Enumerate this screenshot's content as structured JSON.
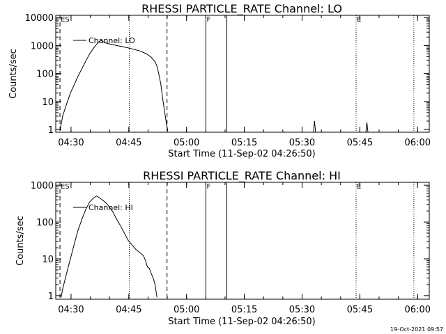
{
  "footer": {
    "timestamp": "19-Oct-2021 09:57"
  },
  "chart_data": [
    {
      "type": "line",
      "title": "RHESSI PARTICLE_RATE Channel: LO",
      "xlabel": "Start Time (11-Sep-02 04:26:50)",
      "ylabel": "Counts/sec",
      "yscale": "log",
      "ylim": [
        0.8,
        12000
      ],
      "xlim_minutes": [
        -0.8,
        96.2
      ],
      "x_ticks": [
        {
          "m": 3.17,
          "label": "04:30"
        },
        {
          "m": 18.17,
          "label": "04:45"
        },
        {
          "m": 33.17,
          "label": "05:00"
        },
        {
          "m": 48.17,
          "label": "05:15"
        },
        {
          "m": 63.17,
          "label": "05:30"
        },
        {
          "m": 78.17,
          "label": "05:45"
        },
        {
          "m": 93.17,
          "label": "06:00"
        }
      ],
      "y_ticks": [
        {
          "v": 1,
          "label": "1"
        },
        {
          "v": 10,
          "label": "10"
        },
        {
          "v": 100,
          "label": "100"
        },
        {
          "v": 1000,
          "label": "1000"
        },
        {
          "v": 10000,
          "label": "10000"
        }
      ],
      "legend": {
        "label": "Channel: LO",
        "position": "top-left"
      },
      "vlines": [
        {
          "m": 0.3,
          "style": "dashed"
        },
        {
          "m": 18.3,
          "style": "dotted"
        },
        {
          "m": 28.1,
          "style": "dashed"
        },
        {
          "m": 38.2,
          "style": "solid"
        },
        {
          "m": 43.6,
          "style": "solid"
        },
        {
          "m": 77.2,
          "style": "dotted"
        },
        {
          "m": 92.2,
          "style": "dotted"
        }
      ],
      "markers": [
        {
          "m": 0.3,
          "label": "ES"
        },
        {
          "m": 38.2,
          "label": "F"
        },
        {
          "m": 77.2,
          "label": "E"
        }
      ],
      "series": [
        {
          "name": "Channel: LO",
          "points": [
            [
              0.3,
              0.9
            ],
            [
              0.6,
              1.5
            ],
            [
              1,
              3
            ],
            [
              2,
              8
            ],
            [
              3,
              20
            ],
            [
              4,
              40
            ],
            [
              5,
              80
            ],
            [
              6,
              150
            ],
            [
              7,
              280
            ],
            [
              8,
              500
            ],
            [
              9,
              800
            ],
            [
              9.8,
              1100
            ],
            [
              10.5,
              1400
            ],
            [
              11,
              1520
            ],
            [
              11.5,
              1380
            ],
            [
              12,
              1250
            ],
            [
              13,
              1150
            ],
            [
              14,
              1080
            ],
            [
              15,
              1000
            ],
            [
              16,
              940
            ],
            [
              17,
              880
            ],
            [
              18,
              820
            ],
            [
              19,
              760
            ],
            [
              20,
              700
            ],
            [
              21,
              640
            ],
            [
              22,
              560
            ],
            [
              23,
              480
            ],
            [
              24,
              380
            ],
            [
              25,
              260
            ],
            [
              25.5,
              180
            ],
            [
              26,
              90
            ],
            [
              26.5,
              40
            ],
            [
              27,
              12
            ],
            [
              27.5,
              4
            ],
            [
              28,
              1.5
            ],
            [
              28.3,
              0.9
            ]
          ]
        }
      ],
      "spikes": [
        {
          "m": 66.4,
          "value": 2
        },
        {
          "m": 80.0,
          "value": 1.8
        }
      ]
    },
    {
      "type": "line",
      "title": "RHESSI PARTICLE_RATE Channel: HI",
      "xlabel": "Start Time (11-Sep-02 04:26:50)",
      "ylabel": "Counts/sec",
      "yscale": "log",
      "ylim": [
        0.8,
        1200
      ],
      "xlim_minutes": [
        -0.8,
        96.2
      ],
      "x_ticks": [
        {
          "m": 3.17,
          "label": "04:30"
        },
        {
          "m": 18.17,
          "label": "04:45"
        },
        {
          "m": 33.17,
          "label": "05:00"
        },
        {
          "m": 48.17,
          "label": "05:15"
        },
        {
          "m": 63.17,
          "label": "05:30"
        },
        {
          "m": 78.17,
          "label": "05:45"
        },
        {
          "m": 93.17,
          "label": "06:00"
        }
      ],
      "y_ticks": [
        {
          "v": 1,
          "label": "1"
        },
        {
          "v": 10,
          "label": "10"
        },
        {
          "v": 100,
          "label": "100"
        },
        {
          "v": 1000,
          "label": "1000"
        }
      ],
      "legend": {
        "label": "Channel: HI",
        "position": "top-left"
      },
      "vlines": [
        {
          "m": 0.3,
          "style": "dashed"
        },
        {
          "m": 18.3,
          "style": "dotted"
        },
        {
          "m": 28.1,
          "style": "dashed"
        },
        {
          "m": 38.2,
          "style": "solid"
        },
        {
          "m": 43.6,
          "style": "solid"
        },
        {
          "m": 77.2,
          "style": "dotted"
        },
        {
          "m": 92.2,
          "style": "dotted"
        }
      ],
      "markers": [
        {
          "m": 0.3,
          "label": "ES"
        },
        {
          "m": 38.2,
          "label": "F"
        },
        {
          "m": 77.2,
          "label": "E"
        }
      ],
      "series": [
        {
          "name": "Channel: HI",
          "points": [
            [
              0.6,
              0.9
            ],
            [
              1,
              1.5
            ],
            [
              2,
              4
            ],
            [
              3,
              10
            ],
            [
              4,
              25
            ],
            [
              5,
              60
            ],
            [
              6,
              120
            ],
            [
              7,
              220
            ],
            [
              8,
              350
            ],
            [
              9,
              450
            ],
            [
              9.8,
              510
            ],
            [
              10.5,
              460
            ],
            [
              11,
              420
            ],
            [
              12,
              350
            ],
            [
              13,
              270
            ],
            [
              14,
              190
            ],
            [
              15,
              120
            ],
            [
              16,
              80
            ],
            [
              17,
              50
            ],
            [
              18,
              32
            ],
            [
              19,
              24
            ],
            [
              20,
              18
            ],
            [
              21,
              15
            ],
            [
              22,
              12
            ],
            [
              22.5,
              9
            ],
            [
              23,
              6
            ],
            [
              23.5,
              5.5
            ],
            [
              24,
              4
            ],
            [
              24.5,
              3
            ],
            [
              25,
              2
            ],
            [
              25.3,
              1.2
            ],
            [
              25.5,
              0.9
            ]
          ]
        }
      ],
      "spikes": []
    }
  ]
}
